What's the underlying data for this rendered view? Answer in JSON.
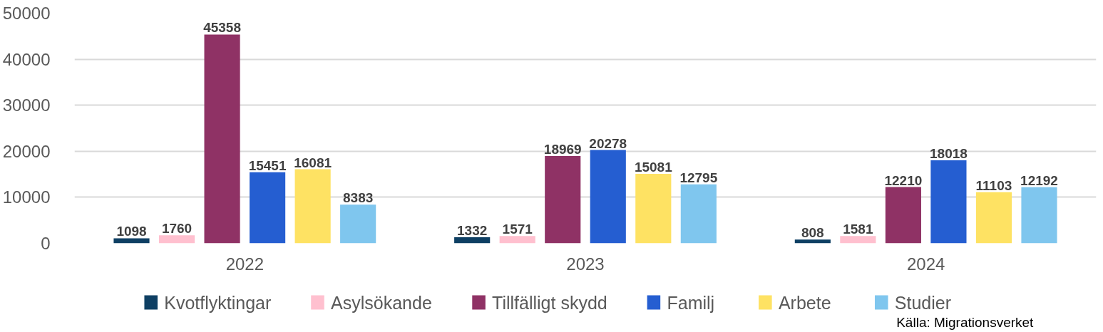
{
  "chart_data": {
    "type": "bar",
    "categories": [
      "2022",
      "2023",
      "2024"
    ],
    "series": [
      {
        "name": "Kvotflyktingar",
        "color": "#0e3f63",
        "values": [
          1098,
          1332,
          808
        ]
      },
      {
        "name": "Asylsökande",
        "color": "#ffc0cf",
        "values": [
          1760,
          1571,
          1581
        ]
      },
      {
        "name": "Tillfälligt skydd",
        "color": "#8f3265",
        "values": [
          45358,
          18969,
          12210
        ]
      },
      {
        "name": "Familj",
        "color": "#255ed1",
        "values": [
          15451,
          20278,
          18018
        ]
      },
      {
        "name": "Arbete",
        "color": "#fee263",
        "values": [
          16081,
          15081,
          11103
        ]
      },
      {
        "name": "Studier",
        "color": "#7fc6ee",
        "values": [
          8383,
          12795,
          12192
        ]
      }
    ],
    "ylim": [
      0,
      50000
    ],
    "yticks": [
      0,
      10000,
      20000,
      30000,
      40000,
      50000
    ],
    "grid": "y",
    "legend": "bottom",
    "data_labels": true,
    "annotations": [
      "Källa: Migrationsverket"
    ]
  }
}
